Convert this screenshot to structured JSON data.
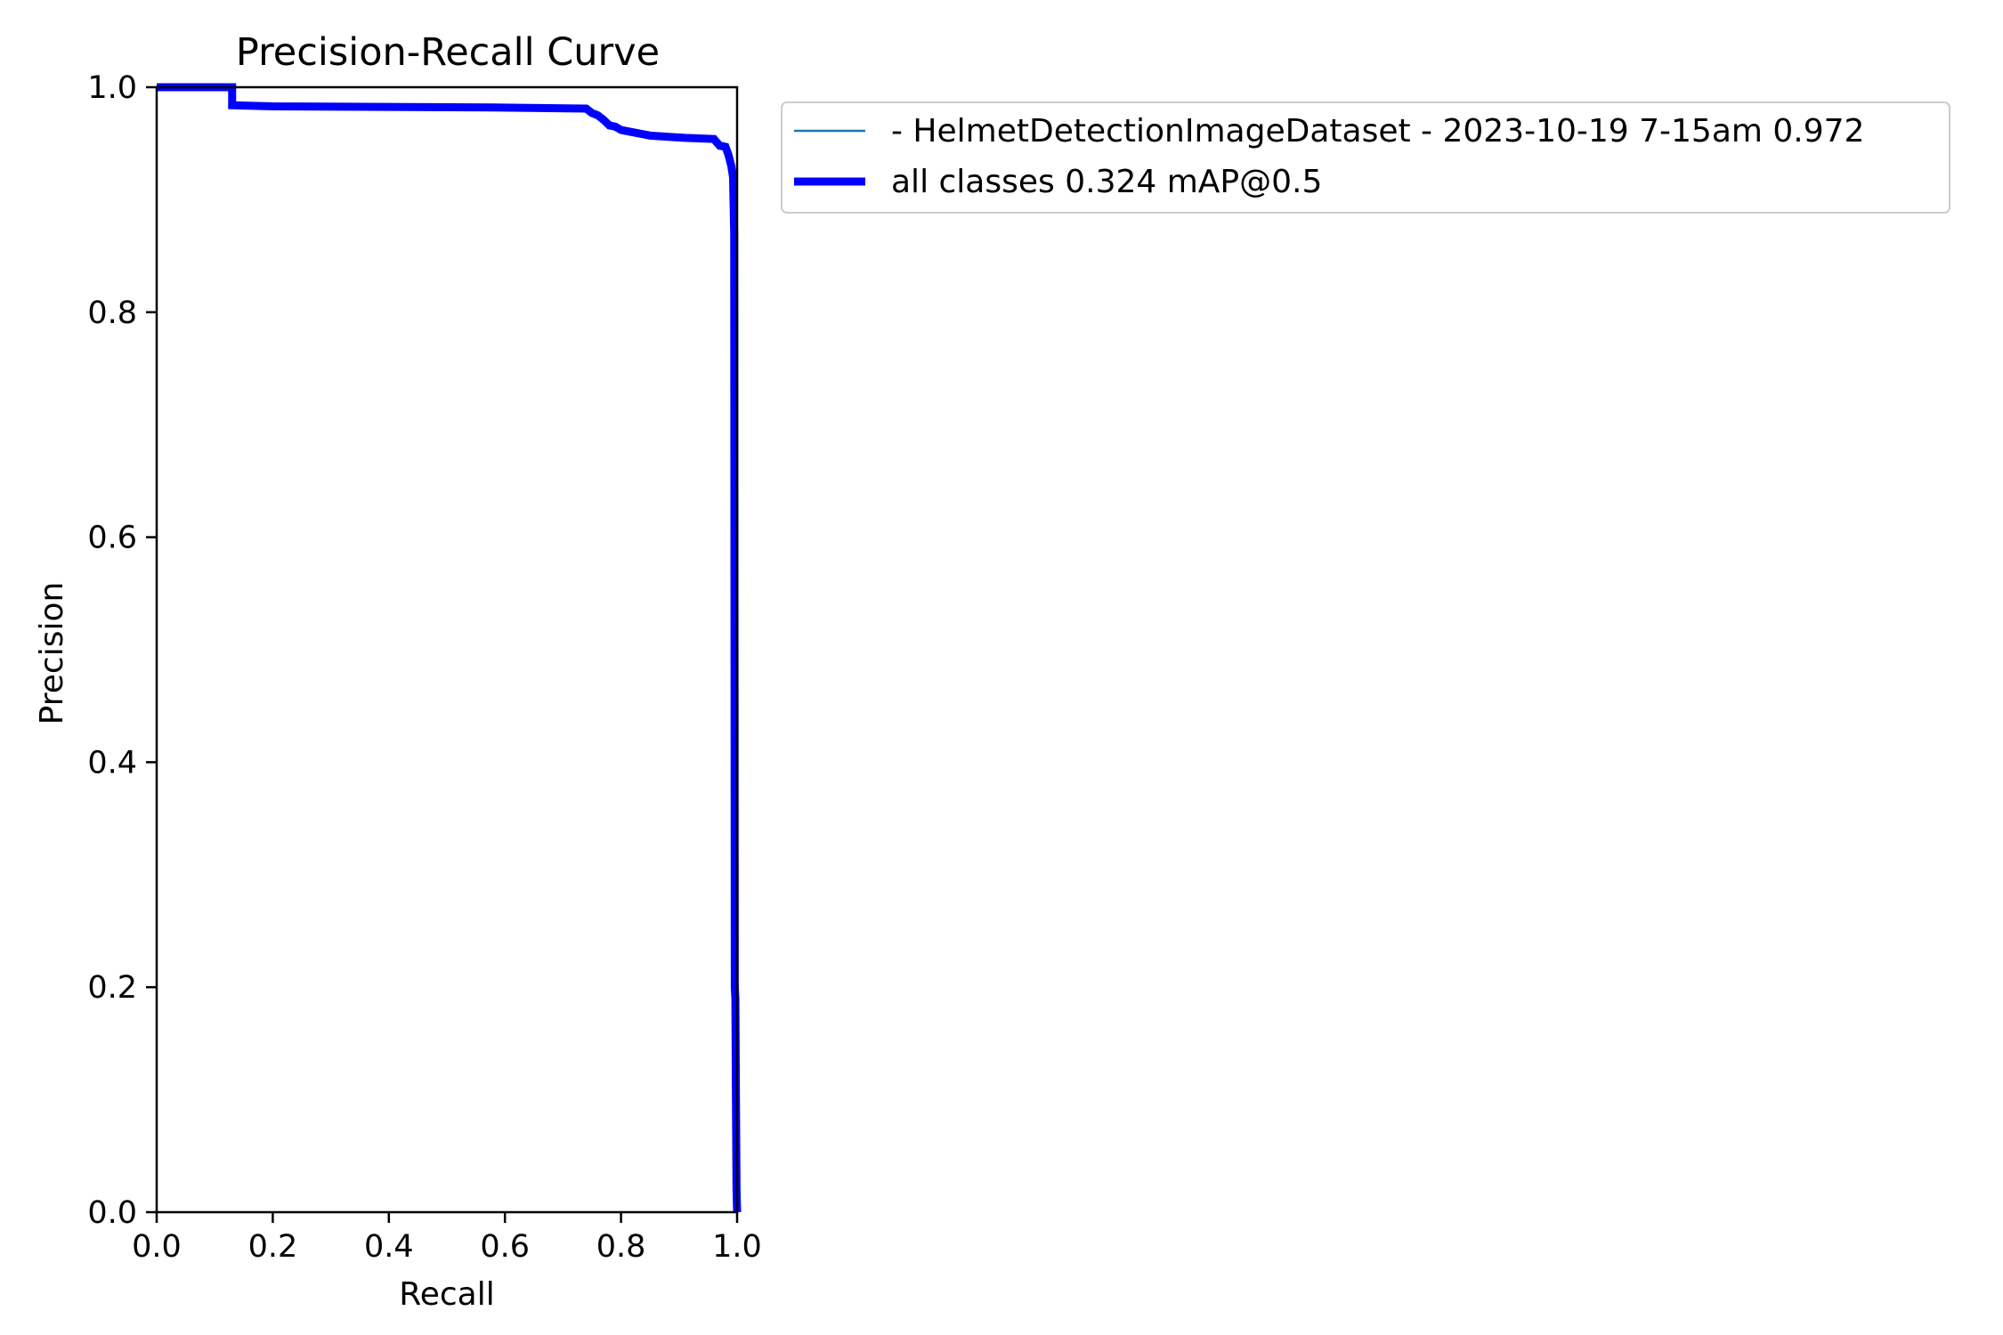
{
  "chart_data": {
    "type": "line",
    "title": "Precision-Recall Curve",
    "xlabel": "Recall",
    "ylabel": "Precision",
    "xlim": [
      0.0,
      1.0
    ],
    "ylim": [
      0.0,
      1.0
    ],
    "xticks": [
      "0.0",
      "0.2",
      "0.4",
      "0.6",
      "0.8",
      "1.0"
    ],
    "yticks": [
      "0.0",
      "0.2",
      "0.4",
      "0.6",
      "0.8",
      "1.0"
    ],
    "grid": false,
    "legend_position": "outside top-right",
    "series": [
      {
        "name": "- HelmetDetectionImageDataset - 2023-10-19 7-15am 0.972",
        "color": "#1f77b4",
        "linewidth": "thin",
        "x": [
          0.0,
          0.13,
          0.13,
          0.2,
          0.58,
          0.74,
          0.75,
          0.76,
          0.77,
          0.78,
          0.79,
          0.8,
          0.81,
          0.84,
          0.85,
          0.91,
          0.96,
          0.97,
          0.98,
          0.985,
          0.99,
          0.993,
          0.995,
          0.996,
          0.997,
          0.998,
          0.999,
          1.0
        ],
        "y": [
          1.0,
          1.0,
          0.984,
          0.983,
          0.982,
          0.981,
          0.977,
          0.975,
          0.971,
          0.966,
          0.965,
          0.962,
          0.961,
          0.958,
          0.957,
          0.955,
          0.954,
          0.948,
          0.947,
          0.94,
          0.93,
          0.92,
          0.87,
          0.2,
          0.19,
          0.1,
          0.02,
          0.0
        ]
      },
      {
        "name": "all classes 0.324 mAP@0.5",
        "color": "#0000ff",
        "linewidth": "thick",
        "x": [
          0.0,
          0.13,
          0.13,
          0.2,
          0.58,
          0.74,
          0.75,
          0.76,
          0.77,
          0.78,
          0.79,
          0.8,
          0.81,
          0.84,
          0.85,
          0.91,
          0.96,
          0.97,
          0.98,
          0.985,
          0.99,
          0.993,
          0.995,
          0.996,
          0.997,
          0.998,
          0.999,
          1.0
        ],
        "y": [
          1.0,
          1.0,
          0.984,
          0.983,
          0.982,
          0.981,
          0.977,
          0.975,
          0.971,
          0.966,
          0.965,
          0.962,
          0.961,
          0.958,
          0.957,
          0.955,
          0.954,
          0.948,
          0.947,
          0.94,
          0.93,
          0.92,
          0.87,
          0.2,
          0.19,
          0.1,
          0.02,
          0.0
        ]
      }
    ]
  }
}
